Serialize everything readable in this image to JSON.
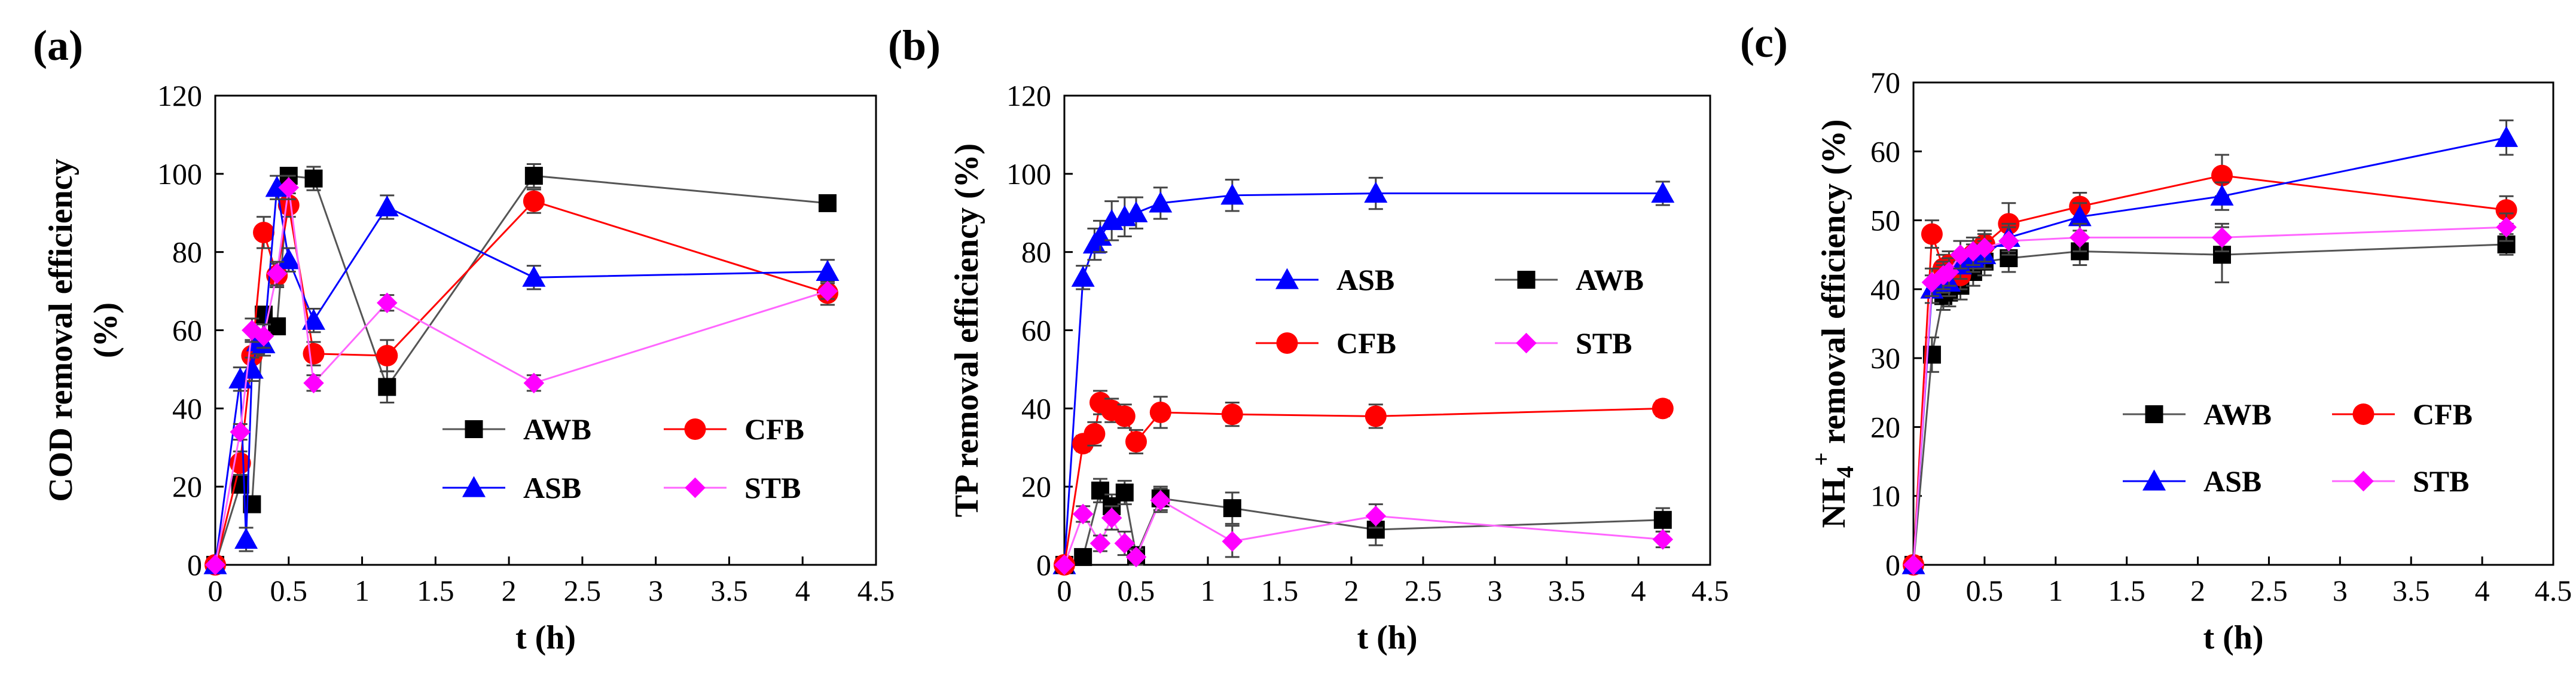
{
  "chart_data": [
    {
      "panel_label": "(a)",
      "type": "line",
      "xlabel": "t (h)",
      "ylabel_lines": [
        "COD removal efficiency",
        "(%)"
      ],
      "xlim": [
        0,
        4.5
      ],
      "ylim": [
        0,
        120
      ],
      "xticks": [
        "0",
        "0.5",
        "1",
        "1.5",
        "2",
        "2.5",
        "3",
        "3.5",
        "4",
        "4.5"
      ],
      "yticks": [
        "0",
        "20",
        "40",
        "60",
        "80",
        "100",
        "120"
      ],
      "legend_position": "center-right",
      "series": [
        {
          "name": "AWB",
          "color": "#000000",
          "line_color": "#555555",
          "marker": "square",
          "x": [
            0,
            0.17,
            0.25,
            0.33,
            0.42,
            0.5,
            0.67,
            1.17,
            2.17,
            4.17
          ],
          "y": [
            0,
            20.5,
            15.5,
            64,
            61,
            99.5,
            98.8,
            45.5,
            99.5,
            92.5
          ],
          "err": [
            1,
            2,
            2,
            2,
            2,
            2,
            3,
            4,
            3,
            2
          ]
        },
        {
          "name": "CFB",
          "color": "#ff0000",
          "line_color": "#ff0000",
          "marker": "circle",
          "x": [
            0,
            0.17,
            0.25,
            0.33,
            0.42,
            0.5,
            0.67,
            1.17,
            2.17,
            4.17
          ],
          "y": [
            0,
            26,
            53.5,
            85,
            74,
            92,
            54,
            53.5,
            93,
            69.5
          ],
          "err": [
            1,
            3,
            4,
            4,
            3,
            3,
            3,
            4,
            3,
            3
          ]
        },
        {
          "name": "ASB",
          "color": "#0000ff",
          "line_color": "#0000ff",
          "marker": "triangle",
          "x": [
            0,
            0.17,
            0.21,
            0.25,
            0.29,
            0.33,
            0.42,
            0.5,
            0.67,
            1.17,
            2.17,
            4.17
          ],
          "y": [
            0,
            47.5,
            6.5,
            50,
            57,
            56.5,
            96.5,
            78,
            62.5,
            91.5,
            73.5,
            75
          ],
          "err": [
            1,
            3,
            3,
            3,
            3,
            3,
            3,
            3,
            3,
            3,
            3,
            3
          ]
        },
        {
          "name": "STB",
          "color": "#ff00ff",
          "line_color": "#ff66ff",
          "marker": "diamond",
          "x": [
            0,
            0.17,
            0.25,
            0.33,
            0.42,
            0.5,
            0.67,
            1.17,
            2.17,
            4.17
          ],
          "y": [
            0,
            34,
            60,
            58.5,
            74.5,
            96.5,
            46.5,
            67,
            46.5,
            70
          ],
          "err": [
            1,
            2,
            3,
            3,
            3,
            3,
            2,
            2,
            2,
            2
          ]
        }
      ]
    },
    {
      "panel_label": "(b)",
      "type": "line",
      "xlabel": "t (h)",
      "ylabel_lines": [
        "TP removal efficiency (%)"
      ],
      "xlim": [
        0,
        4.5
      ],
      "ylim": [
        0,
        120
      ],
      "xticks": [
        "0",
        "0.5",
        "1",
        "1.5",
        "2",
        "2.5",
        "3",
        "3.5",
        "4",
        "4.5"
      ],
      "yticks": [
        "0",
        "20",
        "40",
        "60",
        "80",
        "100",
        "120"
      ],
      "legend_position": "center",
      "series": [
        {
          "name": "ASB",
          "color": "#0000ff",
          "line_color": "#0000ff",
          "marker": "triangle",
          "x": [
            0,
            0.13,
            0.21,
            0.25,
            0.33,
            0.42,
            0.5,
            0.67,
            1.17,
            2.17,
            4.17
          ],
          "y": [
            0,
            73.5,
            82,
            84,
            88,
            89,
            90,
            92.5,
            94.5,
            95,
            95
          ],
          "err": [
            1,
            3,
            4,
            4,
            5,
            5,
            4,
            4,
            4,
            4,
            3
          ]
        },
        {
          "name": "AWB",
          "color": "#000000",
          "line_color": "#555555",
          "marker": "square",
          "x": [
            0,
            0.13,
            0.25,
            0.33,
            0.42,
            0.5,
            0.67,
            1.17,
            2.17,
            4.17
          ],
          "y": [
            0,
            2,
            19,
            15,
            18.5,
            2.5,
            17,
            14.5,
            9,
            11.5
          ],
          "err": [
            0.5,
            1,
            3,
            3,
            3,
            2,
            3,
            4,
            4,
            3
          ]
        },
        {
          "name": "CFB",
          "color": "#ff0000",
          "line_color": "#ff0000",
          "marker": "circle",
          "x": [
            0,
            0.13,
            0.21,
            0.25,
            0.33,
            0.42,
            0.5,
            0.67,
            1.17,
            2.17,
            4.17
          ],
          "y": [
            0,
            31,
            33.5,
            41.5,
            39.5,
            38,
            31.5,
            39,
            38.5,
            38,
            40
          ],
          "err": [
            1,
            2,
            3,
            3,
            3,
            3,
            3,
            4,
            3,
            3,
            2
          ]
        },
        {
          "name": "STB",
          "color": "#ff00ff",
          "line_color": "#ff66ff",
          "marker": "diamond",
          "x": [
            0,
            0.13,
            0.25,
            0.33,
            0.42,
            0.5,
            0.67,
            1.17,
            2.17,
            4.17
          ],
          "y": [
            0,
            13,
            5.5,
            12,
            5.5,
            2,
            16.5,
            6,
            12.5,
            6.5
          ],
          "err": [
            0.5,
            2,
            2,
            3,
            3,
            2,
            3,
            4,
            3,
            2
          ]
        }
      ]
    },
    {
      "panel_label": "(c)",
      "type": "line",
      "xlabel": "t (h)",
      "ylabel_parts": [
        "NH",
        "4",
        "+",
        " removal efficiency (%)"
      ],
      "xlim": [
        0,
        4.5
      ],
      "ylim": [
        0,
        70
      ],
      "xticks": [
        "0",
        "0.5",
        "1",
        "1.5",
        "2",
        "2.5",
        "3",
        "3.5",
        "4",
        "4.5"
      ],
      "yticks": [
        "0",
        "10",
        "20",
        "30",
        "40",
        "50",
        "60",
        "70"
      ],
      "legend_position": "center-right",
      "series": [
        {
          "name": "AWB",
          "color": "#000000",
          "line_color": "#555555",
          "marker": "square",
          "x": [
            0,
            0.13,
            0.21,
            0.25,
            0.33,
            0.42,
            0.5,
            0.67,
            1.17,
            2.17,
            4.17
          ],
          "y": [
            0,
            30.5,
            39,
            39.5,
            40.5,
            42.5,
            44,
            44.5,
            45.5,
            45,
            46.5
          ],
          "err": [
            0.5,
            2.5,
            2,
            2,
            2,
            2,
            2,
            2,
            2,
            4,
            1.5
          ]
        },
        {
          "name": "CFB",
          "color": "#ff0000",
          "line_color": "#ff0000",
          "marker": "circle",
          "x": [
            0,
            0.13,
            0.21,
            0.25,
            0.33,
            0.42,
            0.5,
            0.67,
            1.17,
            2.17,
            4.17
          ],
          "y": [
            0,
            48,
            43,
            43.5,
            42,
            45,
            46.5,
            49.5,
            52,
            56.5,
            51.5
          ],
          "err": [
            0.5,
            2,
            2,
            2,
            2,
            2,
            2,
            3,
            2,
            3,
            2
          ]
        },
        {
          "name": "ASB",
          "color": "#0000ff",
          "line_color": "#0000ff",
          "marker": "triangle",
          "x": [
            0,
            0.13,
            0.21,
            0.25,
            0.33,
            0.42,
            0.5,
            0.67,
            1.17,
            2.17,
            4.17
          ],
          "y": [
            0,
            40,
            41.5,
            41,
            43.5,
            44.5,
            45,
            47.5,
            50.5,
            53.5,
            62
          ],
          "err": [
            0.5,
            2,
            2,
            2,
            2,
            2,
            2,
            2,
            2,
            2,
            2.5
          ]
        },
        {
          "name": "STB",
          "color": "#ff00ff",
          "line_color": "#ff66ff",
          "marker": "diamond",
          "x": [
            0,
            0.13,
            0.21,
            0.25,
            0.33,
            0.42,
            0.5,
            0.67,
            1.17,
            2.17,
            4.17
          ],
          "y": [
            0,
            41,
            42,
            42.5,
            45,
            45.5,
            46,
            47,
            47.5,
            47.5,
            49
          ],
          "err": [
            0.5,
            2,
            2,
            2,
            2,
            2,
            2,
            2,
            2,
            2,
            2
          ]
        }
      ]
    }
  ]
}
